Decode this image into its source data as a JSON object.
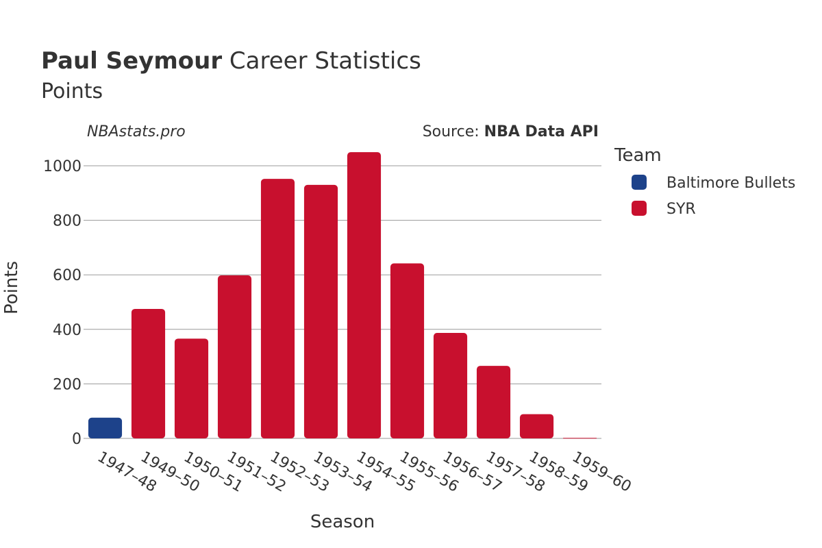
{
  "title": {
    "bold": "Paul Seymour",
    "rest": " Career Statistics"
  },
  "subtitle": "Points",
  "watermark": "NBAstats.pro",
  "source": {
    "prefix": "Source: ",
    "name": "NBA Data API"
  },
  "legend": {
    "title": "Team"
  },
  "colors": {
    "Baltimore Bullets": "#1d428a",
    "SYR": "#c8102e",
    "gridline": "#9a9a9a",
    "text": "#333333"
  },
  "chart_data": {
    "type": "bar",
    "xlabel": "Season",
    "ylabel": "Points",
    "ylim": [
      0,
      1100
    ],
    "yticks": [
      0,
      200,
      400,
      600,
      800,
      1000
    ],
    "grid": true,
    "legend_position": "top-right",
    "categories": [
      "1947–48",
      "1949–50",
      "1950–51",
      "1951–52",
      "1952–53",
      "1953–54",
      "1954–55",
      "1955–56",
      "1956–57",
      "1957–58",
      "1958–59",
      "1959–60"
    ],
    "series": [
      {
        "name": "Baltimore Bullets",
        "values": [
          76,
          null,
          null,
          null,
          null,
          null,
          null,
          null,
          null,
          null,
          null,
          null
        ]
      },
      {
        "name": "SYR",
        "values": [
          null,
          475,
          366,
          598,
          952,
          930,
          1050,
          642,
          387,
          266,
          89,
          2
        ]
      }
    ]
  }
}
